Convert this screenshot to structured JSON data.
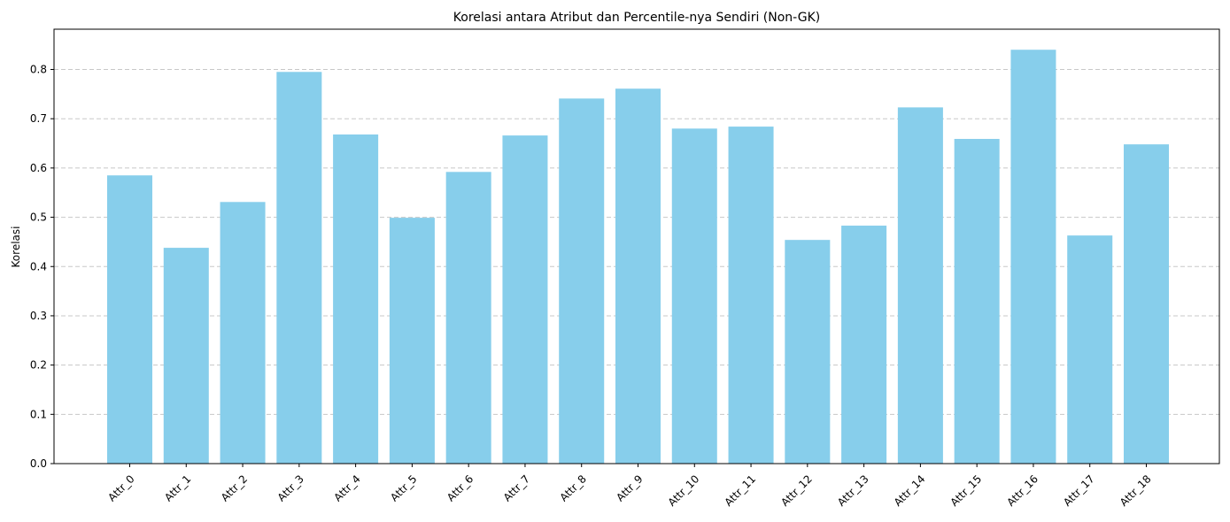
{
  "chart_data": {
    "type": "bar",
    "title": "Korelasi antara Atribut dan Percentile-nya Sendiri (Non-GK)",
    "xlabel": "",
    "ylabel": "Korelasi",
    "categories": [
      "Attr_0",
      "Attr_1",
      "Attr_2",
      "Attr_3",
      "Attr_4",
      "Attr_5",
      "Attr_6",
      "Attr_7",
      "Attr_8",
      "Attr_9",
      "Attr_10",
      "Attr_11",
      "Attr_12",
      "Attr_13",
      "Attr_14",
      "Attr_15",
      "Attr_16",
      "Attr_17",
      "Attr_18"
    ],
    "values": [
      0.585,
      0.438,
      0.531,
      0.795,
      0.668,
      0.499,
      0.592,
      0.666,
      0.741,
      0.761,
      0.68,
      0.684,
      0.454,
      0.483,
      0.723,
      0.659,
      0.84,
      0.463,
      0.648
    ],
    "ylim": [
      0,
      0.88
    ],
    "yticks": [
      0.0,
      0.1,
      0.2,
      0.3,
      0.4,
      0.5,
      0.6,
      0.7,
      0.8
    ],
    "ytick_labels": [
      "0.0",
      "0.1",
      "0.2",
      "0.3",
      "0.4",
      "0.5",
      "0.6",
      "0.7",
      "0.8"
    ],
    "grid": "y-dashed",
    "colors": {
      "bar": "#87ceeb",
      "grid": "#c8c8c8",
      "axis": "#000000"
    }
  }
}
